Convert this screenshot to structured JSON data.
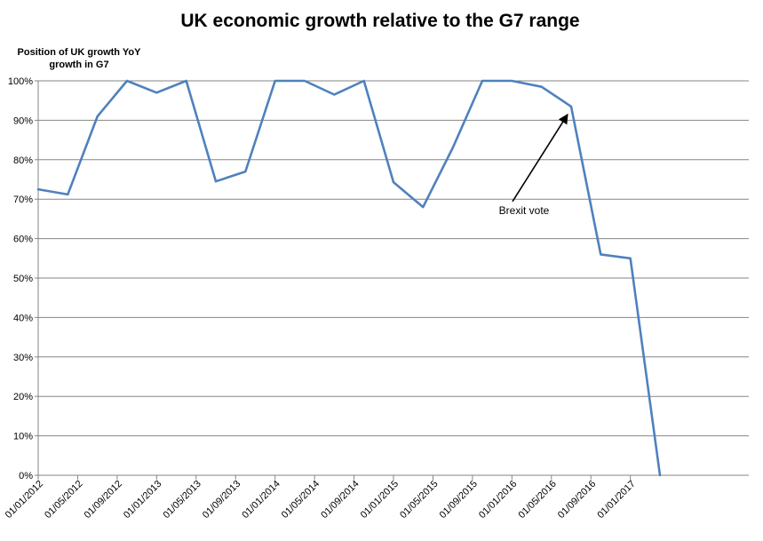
{
  "chart_data": {
    "type": "line",
    "title": "UK economic growth relative to the G7 range",
    "ylabel_lines": [
      "Position of UK growth YoY",
      "growth  in G7"
    ],
    "xlabel": "",
    "ylim": [
      0,
      100
    ],
    "y_ticks": [
      0,
      10,
      20,
      30,
      40,
      50,
      60,
      70,
      80,
      90,
      100
    ],
    "y_tick_labels": [
      "0%",
      "10%",
      "20%",
      "30%",
      "40%",
      "50%",
      "60%",
      "70%",
      "80%",
      "90%",
      "100%"
    ],
    "x_tick_labels": [
      "01/01/2012",
      "01/05/2012",
      "01/09/2012",
      "01/01/2013",
      "01/05/2013",
      "01/09/2013",
      "01/01/2014",
      "01/05/2014",
      "01/09/2014",
      "01/01/2015",
      "01/05/2015",
      "01/09/2015",
      "01/01/2016",
      "01/05/2016",
      "01/09/2016",
      "01/01/2017"
    ],
    "x_tick_months": [
      0,
      4,
      8,
      12,
      16,
      20,
      24,
      28,
      32,
      36,
      40,
      44,
      48,
      52,
      56,
      60
    ],
    "x_range_months": [
      0,
      72
    ],
    "grid": true,
    "series": [
      {
        "name": "Position of UK growth YoY growth in G7",
        "color": "#4F81BD",
        "x_months": [
          0,
          3,
          6,
          9,
          12,
          15,
          18,
          21,
          24,
          27,
          30,
          33,
          36,
          39,
          42,
          45,
          48,
          51,
          54,
          57,
          60,
          63,
          66,
          69,
          72
        ],
        "values": [
          72.5,
          71.2,
          91,
          100,
          97,
          100,
          74.5,
          77,
          100,
          100,
          96.5,
          100,
          74.3,
          68,
          83,
          100,
          100,
          98.5,
          93.5,
          56,
          55,
          0,
          null,
          null,
          null
        ]
      }
    ],
    "annotations": [
      {
        "text": "Brexit vote",
        "target_month": 54,
        "target_value": 93.5
      }
    ]
  }
}
